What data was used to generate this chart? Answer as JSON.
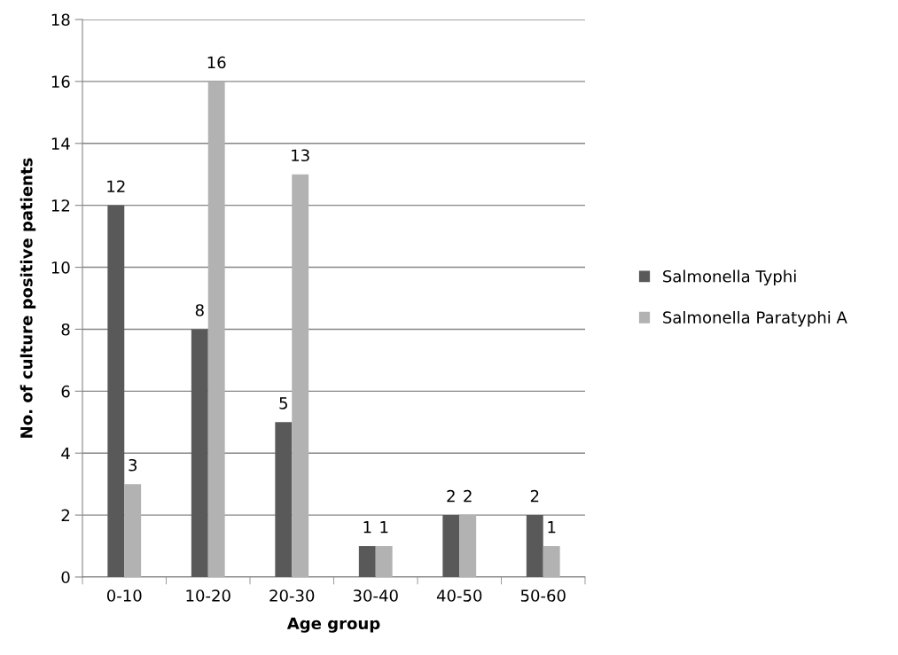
{
  "chart_data": {
    "type": "bar",
    "xlabel": "Age group",
    "ylabel": "No. of culture positive patients",
    "categories": [
      "0-10",
      "10-20",
      "20-30",
      "30-40",
      "40-50",
      "50-60"
    ],
    "series": [
      {
        "name": "Salmonella Typhi",
        "color": "#595959",
        "values": [
          12,
          8,
          5,
          1,
          2,
          2
        ]
      },
      {
        "name": "Salmonella Paratyphi A",
        "color": "#b2b2b2",
        "values": [
          3,
          16,
          13,
          1,
          2,
          1
        ]
      }
    ],
    "ylim": [
      0,
      18
    ],
    "yticks": [
      0,
      2,
      4,
      6,
      8,
      10,
      12,
      14,
      16,
      18
    ],
    "grid": "y",
    "legend": "right",
    "data_labels": true
  }
}
